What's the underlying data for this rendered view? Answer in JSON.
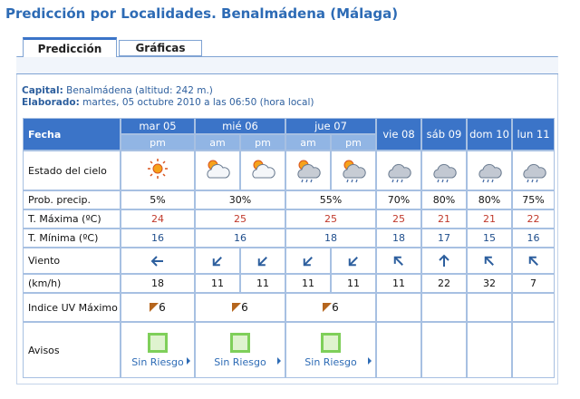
{
  "header": {
    "title": "Predicción por Localidades. Benalmádena (Málaga)"
  },
  "tabs": [
    "Predicción",
    "Gráficas"
  ],
  "info": {
    "capital_label": "Capital:",
    "capital": "Benalmádena (altitud: 242 m.)",
    "elaborado_label": "Elaborado:",
    "elaborado": "martes, 05 octubre 2010 a las 06:50 (hora local)"
  },
  "table": {
    "corner": "Fecha",
    "days": [
      {
        "name": "mar 05",
        "periods": [
          "pm"
        ]
      },
      {
        "name": "mié 06",
        "periods": [
          "am",
          "pm"
        ]
      },
      {
        "name": "jue 07",
        "periods": [
          "am",
          "pm"
        ]
      },
      {
        "name": "vie 08"
      },
      {
        "name": "sáb 09"
      },
      {
        "name": "dom 10"
      },
      {
        "name": "lun 11"
      }
    ],
    "row_labels": [
      "Estado del cielo",
      "Prob. precip.",
      "T. Máxima (ºC)",
      "T. Mínima (ºC)",
      "Viento",
      "(km/h)",
      "Indice UV Máximo",
      "Avisos"
    ],
    "prob_precip": [
      "5%",
      "30%",
      "55%",
      "70%",
      "80%",
      "80%",
      "75%"
    ],
    "t_max": [
      24,
      25,
      25,
      25,
      21,
      21,
      22
    ],
    "t_min": [
      16,
      16,
      18,
      18,
      17,
      15,
      16
    ],
    "wind_speed": [
      18,
      11,
      11,
      11,
      11,
      11,
      22,
      32,
      7
    ],
    "uv_max": [
      6,
      6,
      6
    ],
    "avisos": [
      "Sin Riesgo",
      "Sin Riesgo",
      "Sin Riesgo"
    ]
  }
}
